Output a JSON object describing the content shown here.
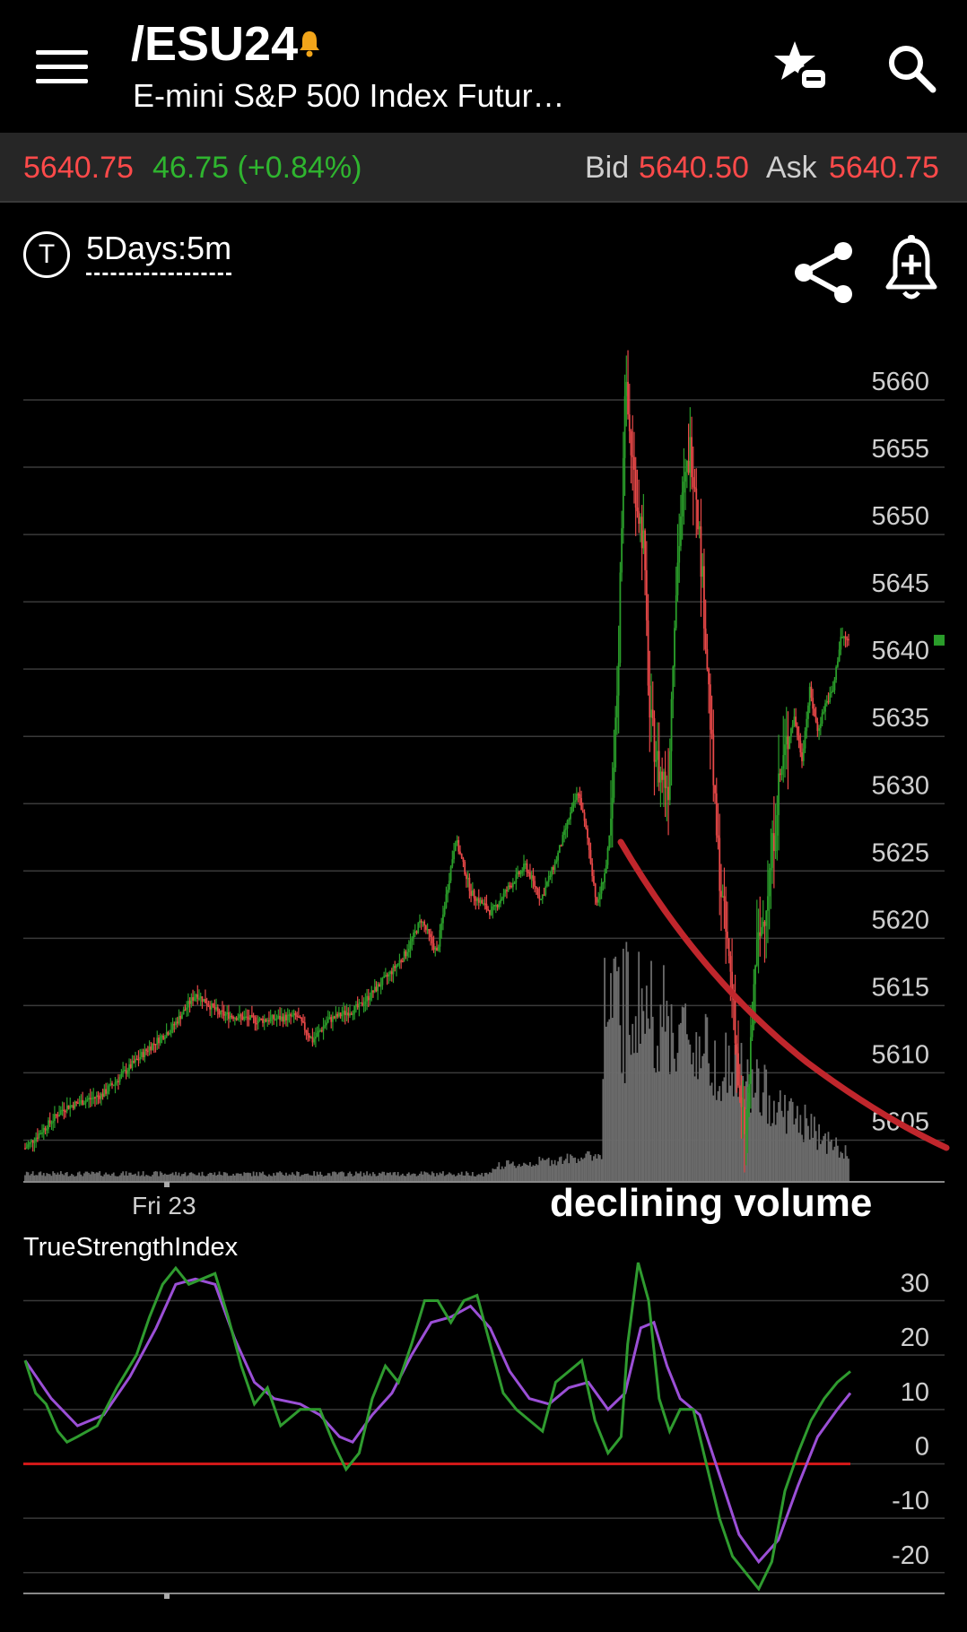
{
  "header": {
    "symbol": "/ESU24",
    "description": "E-mini S&P 500 Index Futur…",
    "menu_icon": "hamburger-menu-icon",
    "watchlist_icon": "star-list-remove-icon",
    "search_icon": "search-icon"
  },
  "quote": {
    "last": "5640.75",
    "change": "46.75 (+0.84%)",
    "bid_label": "Bid",
    "bid": "5640.50",
    "ask_label": "Ask",
    "ask": "5640.75"
  },
  "toolbar": {
    "t_icon_label": "T",
    "timeframe": "5Days:5m",
    "share_icon": "share-icon",
    "alert_icon": "add-alert-bell-icon"
  },
  "colors": {
    "up": "#2a9d2a",
    "down": "#e84848",
    "volume": "#6b6b6b",
    "annotation_curve": "#c0262c",
    "tsi_line": "#2f9b2f",
    "tsi_signal": "#9b4fd6",
    "zero_line": "#d01818",
    "grid": "#3a3a3a"
  },
  "chart_data": [
    {
      "type": "candlestick",
      "timeframe": "5Days:5m",
      "y_ticks": [
        5660,
        5655,
        5650,
        5645,
        5640,
        5635,
        5630,
        5625,
        5620,
        5615,
        5610,
        5605
      ],
      "ylim": [
        5600.5,
        5662
      ],
      "x_labels": [
        "Fri 23"
      ],
      "last_price": 5640.75,
      "price_path": [
        [
          0,
          5603
        ],
        [
          25,
          5606
        ],
        [
          50,
          5607
        ],
        [
          80,
          5610.5
        ],
        [
          95,
          5612
        ],
        [
          110,
          5614.5
        ],
        [
          125,
          5613
        ],
        [
          150,
          5612.5
        ],
        [
          175,
          5612.8
        ],
        [
          185,
          5611
        ],
        [
          195,
          5612.5
        ],
        [
          215,
          5613.5
        ],
        [
          235,
          5616
        ],
        [
          245,
          5617.5
        ],
        [
          255,
          5620
        ],
        [
          265,
          5617.5
        ],
        [
          277,
          5626
        ],
        [
          287,
          5622
        ],
        [
          300,
          5620.5
        ],
        [
          312,
          5622.5
        ],
        [
          322,
          5624
        ],
        [
          332,
          5621.5
        ],
        [
          342,
          5624.5
        ],
        [
          350,
          5627.5
        ],
        [
          356,
          5629.5
        ],
        [
          362,
          5626
        ],
        [
          368,
          5621
        ],
        [
          374,
          5624
        ],
        [
          378,
          5628
        ],
        [
          382,
          5640
        ],
        [
          386,
          5660
        ],
        [
          390,
          5655
        ],
        [
          394,
          5651
        ],
        [
          398,
          5648
        ],
        [
          402,
          5635
        ],
        [
          408,
          5631
        ],
        [
          414,
          5630
        ],
        [
          418,
          5643
        ],
        [
          422,
          5650
        ],
        [
          428,
          5655
        ],
        [
          432,
          5652
        ],
        [
          436,
          5645
        ],
        [
          440,
          5637
        ],
        [
          444,
          5628
        ],
        [
          448,
          5622
        ],
        [
          452,
          5618
        ],
        [
          456,
          5614
        ],
        [
          460,
          5606
        ],
        [
          464,
          5604
        ],
        [
          467,
          5610
        ],
        [
          470,
          5617
        ],
        [
          475,
          5620
        ],
        [
          480,
          5624
        ],
        [
          485,
          5630
        ],
        [
          490,
          5633
        ],
        [
          495,
          5635
        ],
        [
          500,
          5632
        ],
        [
          505,
          5637
        ],
        [
          510,
          5634
        ],
        [
          515,
          5636
        ],
        [
          520,
          5637
        ],
        [
          525,
          5641
        ],
        [
          530,
          5640.75
        ]
      ],
      "volume_profile": "low and flat, spike starting near the large move, then tapering",
      "annotation": "declining volume"
    },
    {
      "type": "line",
      "title": "TrueStrengthIndex",
      "y_ticks": [
        30,
        20,
        10,
        0,
        -10,
        -20
      ],
      "ylim": [
        -23,
        38
      ],
      "zero_line": 0,
      "series": [
        {
          "values": [
            [
              0,
              19
            ],
            [
              8,
              13
            ],
            [
              16,
              11
            ],
            [
              25,
              6
            ],
            [
              32,
              4
            ],
            [
              40,
              5
            ],
            [
              55,
              7
            ],
            [
              70,
              14
            ],
            [
              85,
              20
            ],
            [
              95,
              27
            ],
            [
              105,
              33
            ],
            [
              115,
              36
            ],
            [
              125,
              33
            ],
            [
              135,
              34
            ],
            [
              145,
              35
            ],
            [
              155,
              27
            ],
            [
              165,
              18
            ],
            [
              175,
              11
            ],
            [
              185,
              14
            ],
            [
              195,
              7
            ],
            [
              210,
              10
            ],
            [
              225,
              10
            ],
            [
              235,
              4
            ],
            [
              245,
              -1
            ],
            [
              255,
              2
            ],
            [
              265,
              12
            ],
            [
              275,
              18
            ],
            [
              285,
              15
            ],
            [
              295,
              22
            ],
            [
              305,
              30
            ],
            [
              315,
              30
            ],
            [
              325,
              26
            ],
            [
              335,
              30
            ],
            [
              345,
              31
            ],
            [
              355,
              22
            ],
            [
              365,
              13
            ],
            [
              375,
              10
            ],
            [
              385,
              8
            ],
            [
              395,
              6
            ],
            [
              405,
              15
            ],
            [
              415,
              17
            ],
            [
              425,
              19
            ],
            [
              435,
              8
            ],
            [
              445,
              2
            ],
            [
              455,
              5
            ],
            [
              460,
              22
            ],
            [
              468,
              37
            ],
            [
              476,
              30
            ],
            [
              484,
              12
            ],
            [
              492,
              6
            ],
            [
              500,
              10
            ],
            [
              510,
              10
            ],
            [
              520,
              0
            ],
            [
              530,
              -10
            ],
            [
              540,
              -17
            ],
            [
              550,
              -20
            ],
            [
              560,
              -23
            ],
            [
              570,
              -18
            ],
            [
              580,
              -5
            ],
            [
              590,
              2
            ],
            [
              600,
              8
            ],
            [
              610,
              12
            ],
            [
              620,
              15
            ],
            [
              630,
              17
            ]
          ]
        },
        {
          "values": [
            [
              0,
              19
            ],
            [
              20,
              12
            ],
            [
              40,
              7
            ],
            [
              60,
              9
            ],
            [
              80,
              16
            ],
            [
              100,
              25
            ],
            [
              115,
              33
            ],
            [
              130,
              34
            ],
            [
              145,
              33
            ],
            [
              160,
              23
            ],
            [
              175,
              15
            ],
            [
              190,
              12
            ],
            [
              210,
              11
            ],
            [
              225,
              9
            ],
            [
              240,
              5
            ],
            [
              250,
              4
            ],
            [
              265,
              9
            ],
            [
              280,
              13
            ],
            [
              295,
              20
            ],
            [
              310,
              26
            ],
            [
              325,
              27
            ],
            [
              340,
              29
            ],
            [
              355,
              25
            ],
            [
              370,
              17
            ],
            [
              385,
              12
            ],
            [
              400,
              11
            ],
            [
              415,
              14
            ],
            [
              430,
              15
            ],
            [
              445,
              10
            ],
            [
              458,
              13
            ],
            [
              470,
              25
            ],
            [
              480,
              26
            ],
            [
              490,
              18
            ],
            [
              500,
              12
            ],
            [
              515,
              9
            ],
            [
              530,
              -2
            ],
            [
              545,
              -13
            ],
            [
              560,
              -18
            ],
            [
              575,
              -14
            ],
            [
              590,
              -4
            ],
            [
              605,
              5
            ],
            [
              620,
              10
            ],
            [
              630,
              13
            ]
          ]
        }
      ]
    }
  ]
}
